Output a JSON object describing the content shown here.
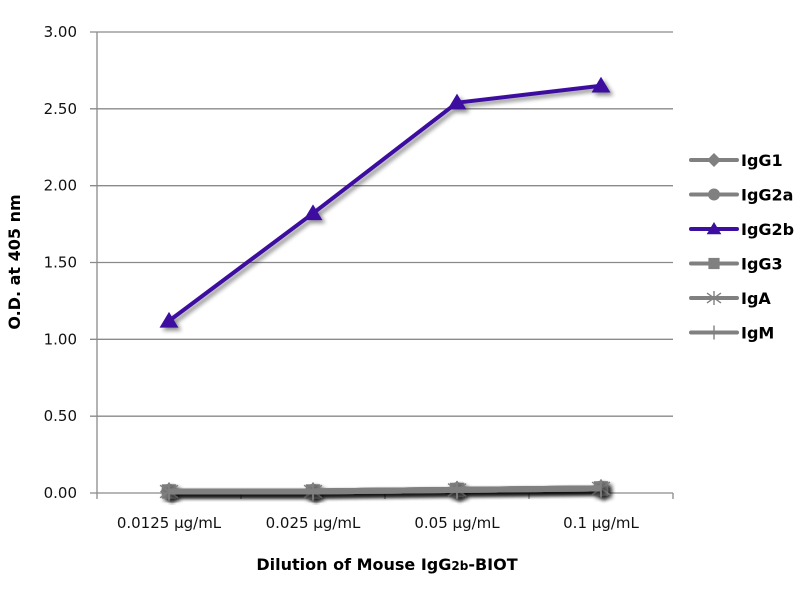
{
  "chart_data": {
    "type": "line",
    "title": "",
    "xlabel": "Dilution of Mouse IgG2b-BIOT",
    "xlabel_parts": [
      {
        "text": "Dilution of Mouse IgG",
        "sub": false
      },
      {
        "text": "2b",
        "sub": true
      },
      {
        "text": "-BIOT",
        "sub": false
      }
    ],
    "ylabel": "O.D. at 405 nm",
    "categories": [
      "0.0125 µg/mL",
      "0.025 µg/mL",
      "0.05 µg/mL",
      "0.1 µg/mL"
    ],
    "ylim": [
      0,
      3
    ],
    "yticks": [
      "0.00",
      "0.50",
      "1.00",
      "1.50",
      "2.00",
      "2.50",
      "3.00"
    ],
    "ytick_values": [
      0,
      0.5,
      1.0,
      1.5,
      2.0,
      2.5,
      3.0
    ],
    "grid": true,
    "legend_position": "right",
    "series": [
      {
        "name": "IgG1",
        "marker": "diamond",
        "color": "#808080",
        "values": [
          0.01,
          0.01,
          0.02,
          0.03
        ]
      },
      {
        "name": "IgG2a",
        "marker": "circle",
        "color": "#808080",
        "values": [
          0.01,
          0.01,
          0.02,
          0.03
        ]
      },
      {
        "name": "IgG2b",
        "marker": "triangle",
        "color": "#3d0fa0",
        "values": [
          1.12,
          1.82,
          2.54,
          2.65
        ]
      },
      {
        "name": "IgG3",
        "marker": "square",
        "color": "#808080",
        "values": [
          0.01,
          0.01,
          0.02,
          0.03
        ]
      },
      {
        "name": "IgA",
        "marker": "star",
        "color": "#808080",
        "values": [
          0.01,
          0.01,
          0.02,
          0.03
        ]
      },
      {
        "name": "IgM",
        "marker": "plus",
        "color": "#808080",
        "values": [
          0.01,
          0.01,
          0.02,
          0.03
        ]
      }
    ]
  }
}
